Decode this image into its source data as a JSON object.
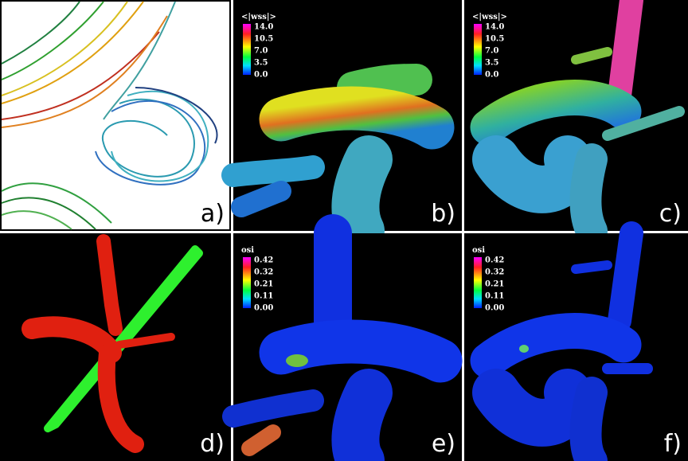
{
  "panels": [
    {
      "label": "a)"
    },
    {
      "label": "b)",
      "colorbar": {
        "title": "<|wss|>",
        "ticks": [
          "14.0",
          "10.5",
          "7.0",
          "3.5",
          "0.0"
        ]
      }
    },
    {
      "label": "c)",
      "colorbar": {
        "title": "<|wss|>",
        "ticks": [
          "14.0",
          "10.5",
          "7.0",
          "3.5",
          "0.0"
        ]
      }
    },
    {
      "label": "d)"
    },
    {
      "label": "e)",
      "colorbar": {
        "title": "osi",
        "ticks": [
          "0.42",
          "0.32",
          "0.21",
          "0.11",
          "0.00"
        ]
      }
    },
    {
      "label": "f)",
      "colorbar": {
        "title": "osi",
        "ticks": [
          "0.42",
          "0.32",
          "0.21",
          "0.11",
          "0.00"
        ]
      }
    }
  ]
}
